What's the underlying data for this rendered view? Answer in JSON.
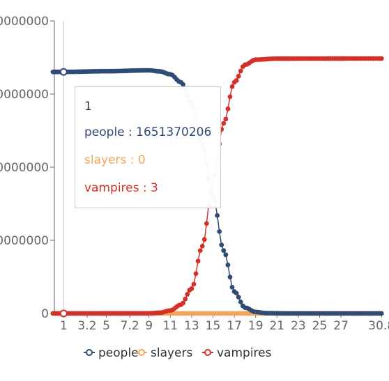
{
  "chart_data": {
    "type": "line",
    "x_ticks": [
      "1",
      "3.2",
      "5",
      "7.2",
      "9",
      "11",
      "13",
      "15",
      "17",
      "19",
      "21",
      "23",
      "25",
      "27",
      "30.8"
    ],
    "y_ticks": [
      "0",
      "0000000",
      "0000000",
      "0000000",
      "0000000"
    ],
    "ylim": [
      0,
      2000000000
    ],
    "xlim": [
      0,
      31
    ],
    "grid": false,
    "legend_position": "bottom",
    "series": [
      {
        "name": "people",
        "color": "#2f4b74",
        "points": [
          [
            0,
            1651370206
          ],
          [
            1,
            1651370206
          ],
          [
            5,
            1656000000
          ],
          [
            9,
            1662000000
          ],
          [
            10,
            1655000000
          ],
          [
            11,
            1635000000
          ],
          [
            12,
            1580000000
          ],
          [
            13,
            1440000000
          ],
          [
            14,
            1150000000
          ],
          [
            15,
            800000000
          ],
          [
            16,
            430000000
          ],
          [
            17,
            150000000
          ],
          [
            18,
            40000000
          ],
          [
            19,
            10000000
          ],
          [
            20,
            2000000
          ],
          [
            22,
            0
          ],
          [
            31,
            0
          ]
        ]
      },
      {
        "name": "slayers",
        "color": "#f5a55a",
        "points": [
          [
            0,
            0
          ],
          [
            1,
            0
          ],
          [
            13,
            0
          ],
          [
            31,
            0
          ]
        ]
      },
      {
        "name": "vampires",
        "color": "#d3302a",
        "points": [
          [
            0,
            0
          ],
          [
            1,
            3
          ],
          [
            9,
            500000
          ],
          [
            10,
            5000000
          ],
          [
            11,
            20000000
          ],
          [
            12,
            60000000
          ],
          [
            13,
            170000000
          ],
          [
            14,
            460000000
          ],
          [
            15,
            900000000
          ],
          [
            16,
            1300000000
          ],
          [
            17,
            1580000000
          ],
          [
            18,
            1700000000
          ],
          [
            19,
            1735000000
          ],
          [
            21,
            1742000000
          ],
          [
            31,
            1743000000
          ]
        ]
      }
    ]
  },
  "tooltip": {
    "title": "1",
    "people": "people : 1651370206",
    "slayers": "slayers : 0",
    "vampires": "vampires : 3"
  },
  "legend": [
    {
      "name": "people",
      "color": "#2f4b74"
    },
    {
      "name": "slayers",
      "color": "#f5a55a"
    },
    {
      "name": "vampires",
      "color": "#d3302a"
    }
  ]
}
